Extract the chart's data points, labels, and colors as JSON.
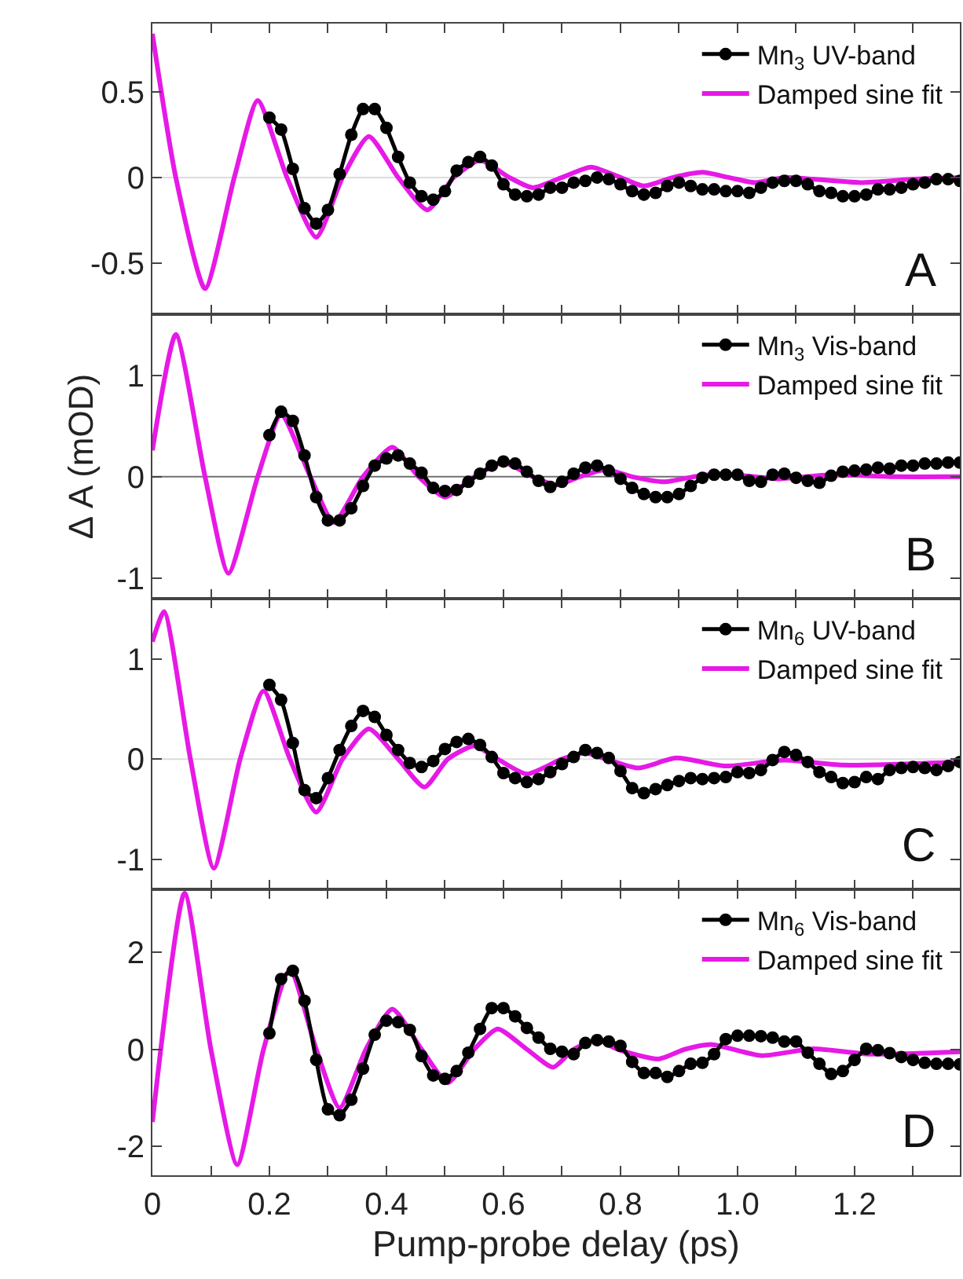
{
  "chart_data": [
    {
      "type": "line",
      "x": [
        0.2,
        0.22,
        0.24,
        0.26,
        0.28,
        0.3,
        0.32,
        0.34,
        0.36,
        0.38,
        0.4,
        0.42,
        0.44,
        0.46,
        0.48,
        0.5,
        0.52,
        0.54,
        0.56,
        0.58,
        0.6,
        0.62,
        0.64,
        0.66,
        0.68,
        0.7,
        0.72,
        0.74,
        0.76,
        0.78,
        0.8,
        0.82,
        0.84,
        0.86,
        0.88,
        0.9,
        0.92,
        0.94,
        0.96,
        0.98,
        1,
        1.02,
        1.04,
        1.06,
        1.08,
        1.1,
        1.12,
        1.14,
        1.16,
        1.18,
        1.2,
        1.22,
        1.24,
        1.26,
        1.28,
        1.3,
        1.32,
        1.34,
        1.36,
        1.38
      ],
      "series": [
        {
          "name": "Mn$_{3}$ UV-band",
          "color": "#000000",
          "marker": "circle",
          "line_style": "solid",
          "values": [
            0.35,
            0.28,
            0.05,
            -0.18,
            -0.27,
            -0.19,
            0.02,
            0.25,
            0.4,
            0.4,
            0.29,
            0.12,
            -0.03,
            -0.11,
            -0.13,
            -0.08,
            0.04,
            0.09,
            0.12,
            0.07,
            -0.04,
            -0.1,
            -0.11,
            -0.1,
            -0.06,
            -0.06,
            -0.03,
            -0.02,
            0,
            -0.01,
            -0.04,
            -0.08,
            -0.1,
            -0.09,
            -0.05,
            -0.03,
            -0.05,
            -0.07,
            -0.07,
            -0.08,
            -0.08,
            -0.09,
            -0.06,
            -0.03,
            -0.02,
            -0.02,
            -0.04,
            -0.08,
            -0.09,
            -0.11,
            -0.11,
            -0.1,
            -0.07,
            -0.07,
            -0.06,
            -0.04,
            -0.03,
            -0.01,
            -0.01,
            -0.02
          ]
        },
        {
          "name": "Damped sine fit",
          "color": "#e619e6",
          "marker": "none",
          "line_style": "solid",
          "x": [
            0,
            0.04,
            0.09,
            0.14,
            0.18,
            0.23,
            0.28,
            0.325,
            0.37,
            0.42,
            0.47,
            0.515,
            0.56,
            0.61,
            0.65,
            0.7,
            0.75,
            0.8,
            0.84,
            0.89,
            0.94,
            0.985,
            1.03,
            1.08,
            1.13,
            1.21,
            1.3,
            1.38
          ],
          "values": [
            0.84,
            0,
            -0.65,
            0,
            0.45,
            0,
            -0.35,
            0,
            0.24,
            0,
            -0.19,
            0,
            0.1,
            0,
            -0.06,
            0,
            0.06,
            0,
            -0.05,
            0,
            0.03,
            0,
            -0.03,
            0,
            -0.01,
            -0.03,
            -0.01,
            0
          ]
        }
      ],
      "xlim": [
        0,
        1.38
      ],
      "ylim": [
        -0.8,
        0.9
      ],
      "xticks": [
        {
          "value": 0,
          "label": null
        },
        {
          "value": 0.1,
          "label": null
        },
        {
          "value": 0.2,
          "label": null
        },
        {
          "value": 0.3,
          "label": null
        },
        {
          "value": 0.4,
          "label": null
        },
        {
          "value": 0.5,
          "label": null
        },
        {
          "value": 0.6,
          "label": null
        },
        {
          "value": 0.7,
          "label": null
        },
        {
          "value": 0.8,
          "label": null
        },
        {
          "value": 0.9,
          "label": null
        },
        {
          "value": 1,
          "label": null
        },
        {
          "value": 1.1,
          "label": null
        },
        {
          "value": 1.2,
          "label": null
        },
        {
          "value": 1.3,
          "label": null
        }
      ],
      "yticks": [
        -0.5,
        0,
        0.5
      ],
      "tick_labels": "y",
      "legend": "top right",
      "grid": false,
      "ref_lines": [
        {
          "axis": "y",
          "value": 0,
          "color": "#dcdcdc"
        }
      ],
      "annotations": [
        "A"
      ]
    },
    {
      "type": "line",
      "ylabel": "Δ A (mOD)",
      "x": [
        0.2,
        0.22,
        0.24,
        0.26,
        0.28,
        0.3,
        0.32,
        0.34,
        0.36,
        0.38,
        0.4,
        0.42,
        0.44,
        0.46,
        0.48,
        0.5,
        0.52,
        0.54,
        0.56,
        0.58,
        0.6,
        0.62,
        0.64,
        0.66,
        0.68,
        0.7,
        0.72,
        0.74,
        0.76,
        0.78,
        0.8,
        0.82,
        0.84,
        0.86,
        0.88,
        0.9,
        0.92,
        0.94,
        0.96,
        0.98,
        1,
        1.02,
        1.04,
        1.06,
        1.08,
        1.1,
        1.12,
        1.14,
        1.16,
        1.18,
        1.2,
        1.22,
        1.24,
        1.26,
        1.28,
        1.3,
        1.32,
        1.34,
        1.36,
        1.38
      ],
      "series": [
        {
          "name": "Mn$_{3}$ Vis-band",
          "color": "#000000",
          "marker": "circle",
          "line_style": "solid",
          "values": [
            0.41,
            0.64,
            0.55,
            0.21,
            -0.2,
            -0.43,
            -0.43,
            -0.31,
            -0.09,
            0.11,
            0.18,
            0.21,
            0.13,
            0.04,
            -0.11,
            -0.14,
            -0.13,
            -0.05,
            0.03,
            0.11,
            0.15,
            0.13,
            0.05,
            -0.04,
            -0.1,
            -0.05,
            0.03,
            0.09,
            0.11,
            0.06,
            -0.02,
            -0.11,
            -0.17,
            -0.2,
            -0.2,
            -0.17,
            -0.09,
            -0.01,
            0.02,
            0.02,
            0.02,
            -0.04,
            -0.05,
            0.02,
            0.03,
            -0.01,
            -0.04,
            -0.06,
            0.01,
            0.05,
            0.06,
            0.07,
            0.09,
            0.08,
            0.11,
            0.11,
            0.13,
            0.13,
            0.14,
            0.14
          ]
        },
        {
          "name": "Damped sine fit",
          "color": "#e619e6",
          "marker": "none",
          "line_style": "solid",
          "x": [
            0,
            0.04,
            0.09,
            0.13,
            0.18,
            0.22,
            0.27,
            0.31,
            0.36,
            0.41,
            0.455,
            0.5,
            0.55,
            0.6,
            0.65,
            0.69,
            0.73,
            0.775,
            0.82,
            0.875,
            0.925,
            0.97,
            1.07,
            1.16,
            1.27,
            1.38
          ],
          "values": [
            0.26,
            1.4,
            0,
            -0.95,
            0,
            0.61,
            0,
            -0.45,
            0,
            0.29,
            0,
            -0.2,
            0,
            0.14,
            0,
            -0.08,
            0,
            0.07,
            0,
            -0.05,
            0,
            0.03,
            -0.02,
            0.02,
            0,
            0
          ]
        }
      ],
      "xlim": [
        0,
        1.38
      ],
      "ylim": [
        -1.2,
        1.6
      ],
      "xticks": [
        {
          "value": 0,
          "label": null
        },
        {
          "value": 0.1,
          "label": null
        },
        {
          "value": 0.2,
          "label": null
        },
        {
          "value": 0.3,
          "label": null
        },
        {
          "value": 0.4,
          "label": null
        },
        {
          "value": 0.5,
          "label": null
        },
        {
          "value": 0.6,
          "label": null
        },
        {
          "value": 0.7,
          "label": null
        },
        {
          "value": 0.8,
          "label": null
        },
        {
          "value": 0.9,
          "label": null
        },
        {
          "value": 1,
          "label": null
        },
        {
          "value": 1.1,
          "label": null
        },
        {
          "value": 1.2,
          "label": null
        },
        {
          "value": 1.3,
          "label": null
        }
      ],
      "yticks": [
        -1,
        0,
        1
      ],
      "tick_labels": "y",
      "legend": "top right",
      "grid": false,
      "ref_lines": [
        {
          "axis": "y",
          "value": 0,
          "color": "#707070"
        }
      ],
      "annotations": [
        "B"
      ]
    },
    {
      "type": "line",
      "x": [
        0.2,
        0.22,
        0.24,
        0.26,
        0.28,
        0.3,
        0.32,
        0.34,
        0.36,
        0.38,
        0.4,
        0.42,
        0.44,
        0.46,
        0.48,
        0.5,
        0.52,
        0.54,
        0.56,
        0.58,
        0.6,
        0.62,
        0.64,
        0.66,
        0.68,
        0.7,
        0.72,
        0.74,
        0.76,
        0.78,
        0.8,
        0.82,
        0.84,
        0.86,
        0.88,
        0.9,
        0.92,
        0.94,
        0.96,
        0.98,
        1,
        1.02,
        1.04,
        1.06,
        1.08,
        1.1,
        1.12,
        1.14,
        1.16,
        1.18,
        1.2,
        1.22,
        1.24,
        1.26,
        1.28,
        1.3,
        1.32,
        1.34,
        1.36,
        1.38
      ],
      "series": [
        {
          "name": "Mn$_{6}$ UV-band",
          "color": "#000000",
          "marker": "circle",
          "line_style": "solid",
          "values": [
            0.74,
            0.59,
            0.16,
            -0.31,
            -0.39,
            -0.19,
            0.09,
            0.33,
            0.48,
            0.42,
            0.24,
            0.09,
            -0.04,
            -0.08,
            -0.02,
            0.1,
            0.17,
            0.2,
            0.14,
            0.02,
            -0.14,
            -0.19,
            -0.23,
            -0.2,
            -0.13,
            -0.05,
            0.02,
            0.09,
            0.06,
            0.01,
            -0.12,
            -0.29,
            -0.34,
            -0.3,
            -0.26,
            -0.22,
            -0.19,
            -0.2,
            -0.19,
            -0.18,
            -0.13,
            -0.14,
            -0.11,
            -0.01,
            0.07,
            0.04,
            -0.03,
            -0.13,
            -0.18,
            -0.24,
            -0.23,
            -0.18,
            -0.2,
            -0.11,
            -0.09,
            -0.08,
            -0.09,
            -0.11,
            -0.07,
            -0.03
          ]
        },
        {
          "name": "Damped sine fit",
          "color": "#e619e6",
          "marker": "none",
          "line_style": "solid",
          "x": [
            0,
            0.02,
            0.065,
            0.105,
            0.15,
            0.19,
            0.235,
            0.28,
            0.325,
            0.37,
            0.42,
            0.465,
            0.505,
            0.55,
            0.59,
            0.64,
            0.7,
            0.74,
            0.775,
            0.83,
            0.895,
            0.98,
            1.08,
            1.18,
            1.38
          ],
          "values": [
            1.17,
            1.47,
            0,
            -1.09,
            0,
            0.68,
            0,
            -0.53,
            0,
            0.3,
            0,
            -0.28,
            0,
            0.13,
            0,
            -0.15,
            0,
            0.06,
            0,
            -0.09,
            0.01,
            -0.07,
            -0.01,
            -0.06,
            -0.03
          ]
        }
      ],
      "xlim": [
        0,
        1.38
      ],
      "ylim": [
        -1.3,
        1.6
      ],
      "xticks": [
        {
          "value": 0,
          "label": null
        },
        {
          "value": 0.1,
          "label": null
        },
        {
          "value": 0.2,
          "label": null
        },
        {
          "value": 0.3,
          "label": null
        },
        {
          "value": 0.4,
          "label": null
        },
        {
          "value": 0.5,
          "label": null
        },
        {
          "value": 0.6,
          "label": null
        },
        {
          "value": 0.7,
          "label": null
        },
        {
          "value": 0.8,
          "label": null
        },
        {
          "value": 0.9,
          "label": null
        },
        {
          "value": 1,
          "label": null
        },
        {
          "value": 1.1,
          "label": null
        },
        {
          "value": 1.2,
          "label": null
        },
        {
          "value": 1.3,
          "label": null
        }
      ],
      "yticks": [
        -1,
        0,
        1
      ],
      "tick_labels": "y",
      "legend": "top right",
      "grid": false,
      "ref_lines": [
        {
          "axis": "y",
          "value": 0,
          "color": "#dcdcdc"
        }
      ],
      "annotations": [
        "C"
      ]
    },
    {
      "type": "line",
      "xlabel": "Pump-probe delay (ps)",
      "x": [
        0.2,
        0.22,
        0.24,
        0.26,
        0.28,
        0.3,
        0.32,
        0.34,
        0.36,
        0.38,
        0.4,
        0.42,
        0.44,
        0.46,
        0.48,
        0.5,
        0.52,
        0.54,
        0.56,
        0.58,
        0.6,
        0.62,
        0.64,
        0.66,
        0.68,
        0.7,
        0.72,
        0.74,
        0.76,
        0.78,
        0.8,
        0.82,
        0.84,
        0.86,
        0.88,
        0.9,
        0.92,
        0.94,
        0.96,
        0.98,
        1,
        1.02,
        1.04,
        1.06,
        1.08,
        1.1,
        1.12,
        1.14,
        1.16,
        1.18,
        1.2,
        1.22,
        1.24,
        1.26,
        1.28,
        1.3,
        1.32,
        1.34,
        1.36,
        1.38
      ],
      "series": [
        {
          "name": "Mn$_{6}$ Vis-band",
          "color": "#000000",
          "marker": "circle",
          "line_style": "solid",
          "values": [
            0.33,
            1.45,
            1.62,
            1,
            -0.22,
            -1.24,
            -1.36,
            -1.04,
            -0.4,
            0.3,
            0.59,
            0.56,
            0.4,
            -0.14,
            -0.54,
            -0.61,
            -0.45,
            -0.07,
            0.42,
            0.85,
            0.85,
            0.68,
            0.44,
            0.24,
            0.01,
            -0.05,
            -0.1,
            0.13,
            0.19,
            0.16,
            0.07,
            -0.26,
            -0.49,
            -0.49,
            -0.57,
            -0.45,
            -0.3,
            -0.28,
            -0.1,
            0.21,
            0.28,
            0.28,
            0.27,
            0.24,
            0.16,
            0.16,
            -0.07,
            -0.3,
            -0.51,
            -0.45,
            -0.22,
            0.01,
            -0.02,
            -0.08,
            -0.16,
            -0.22,
            -0.28,
            -0.3,
            -0.3,
            -0.31
          ]
        },
        {
          "name": "Damped sine fit",
          "color": "#e619e6",
          "marker": "none",
          "line_style": "solid",
          "x": [
            0,
            0.055,
            0.1,
            0.145,
            0.19,
            0.235,
            0.28,
            0.32,
            0.365,
            0.41,
            0.46,
            0.505,
            0.55,
            0.59,
            0.64,
            0.685,
            0.72,
            0.76,
            0.795,
            0.865,
            0.91,
            0.955,
            1.04,
            1.13,
            1.225,
            1.38
          ],
          "values": [
            -1.5,
            3.22,
            0,
            -2.38,
            0,
            1.64,
            0,
            -1.21,
            0,
            0.83,
            0,
            -0.69,
            0,
            0.42,
            0,
            -0.37,
            0,
            0.19,
            0,
            -0.2,
            0,
            0.1,
            -0.13,
            0.01,
            -0.1,
            -0.05
          ]
        }
      ],
      "xlim": [
        0,
        1.38
      ],
      "ylim": [
        -2.6,
        3.3
      ],
      "xticks": [
        0,
        {
          "value": 0.1,
          "label": null
        },
        0.2,
        {
          "value": 0.3,
          "label": null
        },
        0.4,
        {
          "value": 0.5,
          "label": null
        },
        0.6,
        {
          "value": 0.7,
          "label": null
        },
        0.8,
        {
          "value": 0.9,
          "label": null
        },
        {
          "value": 1,
          "label": "1.0"
        },
        {
          "value": 1.1,
          "label": null
        },
        1.2,
        {
          "value": 1.3,
          "label": null
        }
      ],
      "yticks": [
        -2,
        0,
        2
      ],
      "legend": "top right",
      "grid": false,
      "annotations": [
        "D"
      ]
    }
  ]
}
